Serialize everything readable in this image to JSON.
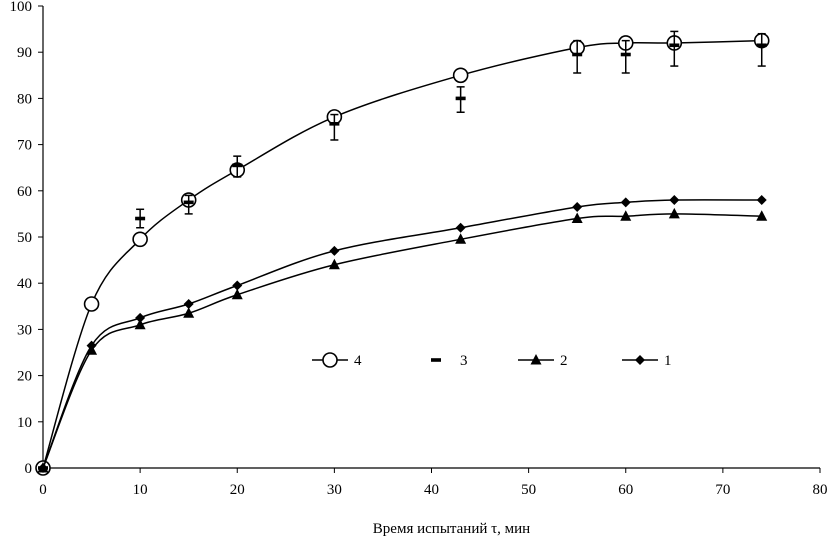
{
  "chart_data": {
    "type": "line",
    "title": "",
    "xlabel": "Время испытаний τ, мин",
    "ylabel": "",
    "xlim": [
      0,
      80
    ],
    "ylim": [
      0,
      100
    ],
    "x_ticks": [
      "0",
      "10",
      "20",
      "30",
      "40",
      "50",
      "60",
      "70",
      "80"
    ],
    "y_ticks": [
      "0",
      "10",
      "20",
      "30",
      "40",
      "50",
      "60",
      "70",
      "80",
      "90",
      "100"
    ],
    "grid": false,
    "legend": {
      "placement": "center-right",
      "order": [
        "4",
        "3",
        "2",
        "1"
      ]
    },
    "series": [
      {
        "name": "4",
        "marker": "open-circle",
        "line": true,
        "x": [
          0,
          5,
          10,
          15,
          20,
          30,
          43,
          55,
          60,
          65,
          74
        ],
        "y": [
          0,
          35.5,
          49.5,
          58,
          64.5,
          76,
          85,
          91,
          92,
          92,
          92.5
        ]
      },
      {
        "name": "3",
        "marker": "dash-with-error-bars",
        "line": false,
        "x": [
          0,
          10,
          15,
          20,
          30,
          43,
          55,
          60,
          65,
          74
        ],
        "y": [
          0,
          54,
          57.5,
          65.5,
          74.5,
          80,
          89.5,
          89.5,
          91.5,
          91.5
        ],
        "err_low": [
          0,
          2,
          2.5,
          2.5,
          3.5,
          3,
          4,
          4,
          4.5,
          4.5
        ],
        "err_high": [
          0,
          2,
          1.5,
          2,
          2,
          2.5,
          3,
          3,
          3,
          2.5
        ]
      },
      {
        "name": "2",
        "marker": "filled-triangle",
        "line": true,
        "x": [
          0,
          5,
          10,
          15,
          20,
          30,
          43,
          55,
          60,
          65,
          74
        ],
        "y": [
          0,
          25.5,
          31,
          33.5,
          37.5,
          44,
          49.5,
          54,
          54.5,
          55,
          54.5
        ]
      },
      {
        "name": "1",
        "marker": "filled-diamond",
        "line": true,
        "x": [
          0,
          5,
          10,
          15,
          20,
          30,
          43,
          55,
          60,
          65,
          74
        ],
        "y": [
          0,
          26.5,
          32.5,
          35.5,
          39.5,
          47,
          52,
          56.5,
          57.5,
          58,
          58
        ]
      }
    ]
  }
}
